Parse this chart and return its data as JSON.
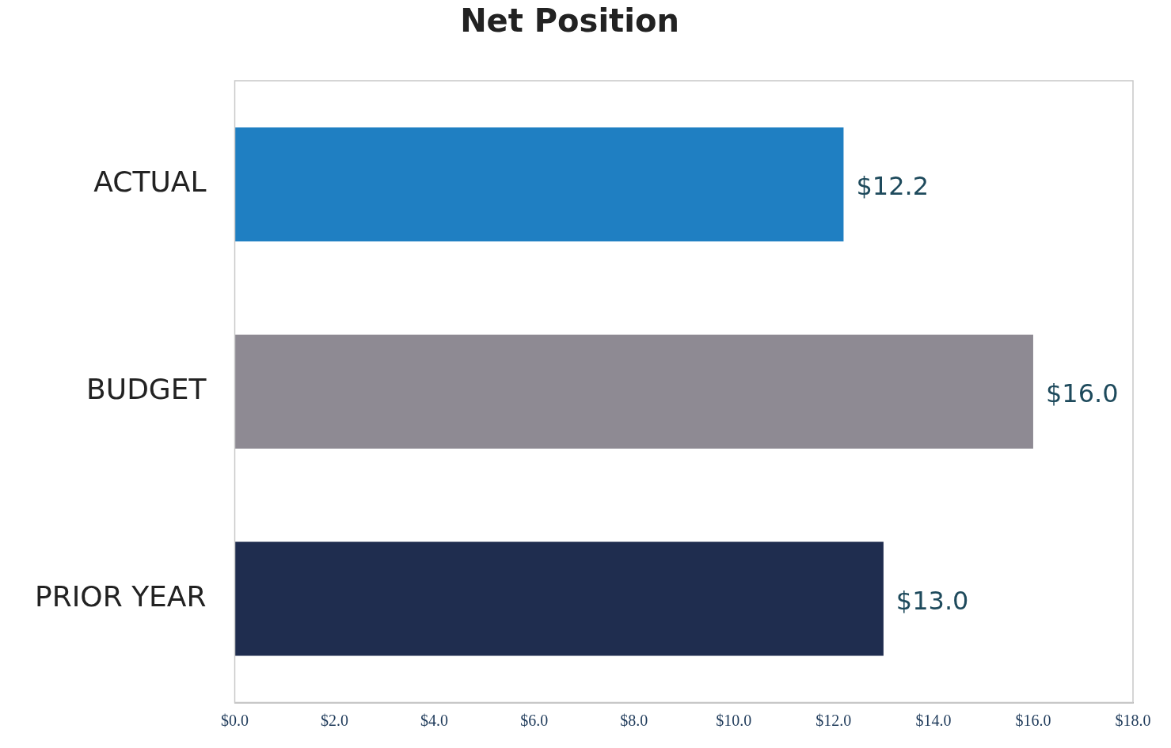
{
  "chart_data": {
    "type": "bar",
    "orientation": "horizontal",
    "title": "Net Position",
    "categories": [
      "ACTUAL",
      "BUDGET",
      "PRIOR YEAR"
    ],
    "values": [
      12.2,
      16.0,
      13.0
    ],
    "colors": [
      "#1f7fc2",
      "#8e8a93",
      "#1f2d4f"
    ],
    "value_labels": [
      "$12.2",
      "$16.0",
      "$13.0"
    ],
    "xlim": [
      0,
      18
    ],
    "xticks": [
      {
        "value": 0,
        "label": "$0.0"
      },
      {
        "value": 2,
        "label": "$2.0"
      },
      {
        "value": 4,
        "label": "$4.0"
      },
      {
        "value": 6,
        "label": "$6.0"
      },
      {
        "value": 8,
        "label": "$8.0"
      },
      {
        "value": 10,
        "label": "$10.0"
      },
      {
        "value": 12,
        "label": "$12.0"
      },
      {
        "value": 14,
        "label": "$14.0"
      },
      {
        "value": 16,
        "label": "$16.0"
      },
      {
        "value": 18,
        "label": "$18.0"
      }
    ],
    "grid": false,
    "legend": false
  }
}
